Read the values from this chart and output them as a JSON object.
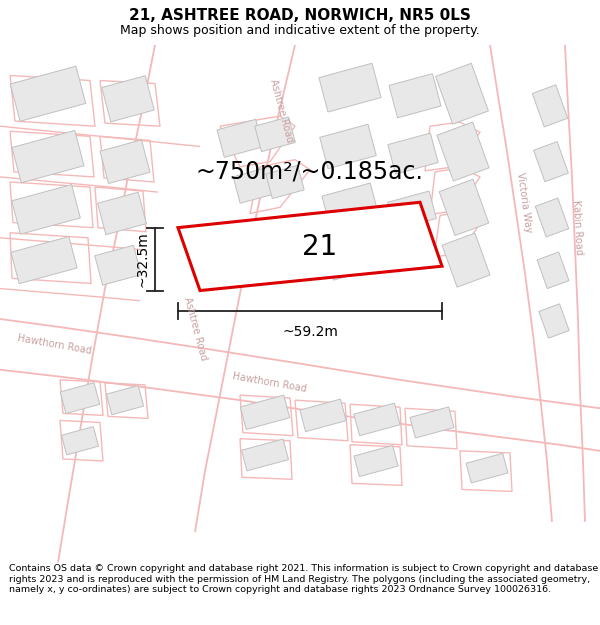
{
  "title": "21, ASHTREE ROAD, NORWICH, NR5 0LS",
  "subtitle": "Map shows position and indicative extent of the property.",
  "area_label": "~750m²/~0.185ac.",
  "number_label": "21",
  "width_label": "~59.2m",
  "height_label": "~32.5m",
  "footer_text": "Contains OS data © Crown copyright and database right 2021. This information is subject to Crown copyright and database rights 2023 and is reproduced with the permission of HM Land Registry. The polygons (including the associated geometry, namely x, y co-ordinates) are subject to Crown copyright and database rights 2023 Ordnance Survey 100026316.",
  "map_bg": "#ffffff",
  "plot_color": "#dd0000",
  "road_color": "#f5b8b8",
  "road_lw": 1.2,
  "building_face": "#e8e8e8",
  "building_edge": "#c0c0c0",
  "building_lw": 0.7,
  "street_label_color": "#c8a0a0",
  "dim_line_color": "#222222",
  "title_fontsize": 11,
  "subtitle_fontsize": 9,
  "area_fontsize": 17,
  "number_fontsize": 20,
  "dim_fontsize": 10,
  "footer_fontsize": 6.8,
  "road_label_fontsize": 7
}
